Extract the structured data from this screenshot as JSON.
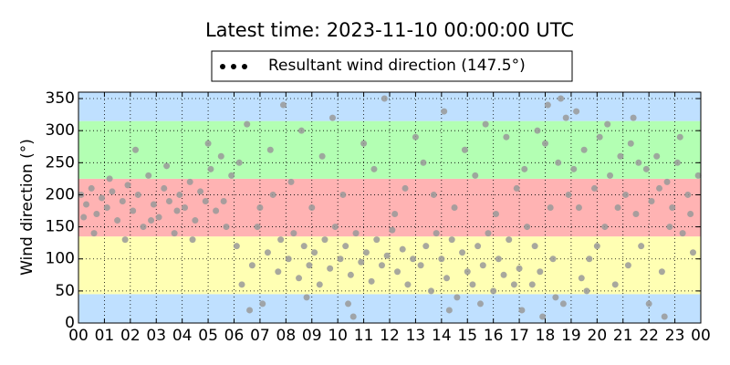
{
  "chart_data": {
    "type": "scatter",
    "title": "Latest time: 2023-11-10 00:00:00 UTC",
    "ylabel": "Wind direction (°)",
    "xlim": [
      0,
      24
    ],
    "ylim": [
      0,
      360
    ],
    "xticks": [
      {
        "value": 0,
        "label": "00"
      },
      {
        "value": 1,
        "label": "01"
      },
      {
        "value": 2,
        "label": "02"
      },
      {
        "value": 3,
        "label": "03"
      },
      {
        "value": 4,
        "label": "04"
      },
      {
        "value": 5,
        "label": "05"
      },
      {
        "value": 6,
        "label": "06"
      },
      {
        "value": 7,
        "label": "07"
      },
      {
        "value": 8,
        "label": "08"
      },
      {
        "value": 9,
        "label": "09"
      },
      {
        "value": 10,
        "label": "10"
      },
      {
        "value": 11,
        "label": "11"
      },
      {
        "value": 12,
        "label": "12"
      },
      {
        "value": 13,
        "label": "13"
      },
      {
        "value": 14,
        "label": "14"
      },
      {
        "value": 15,
        "label": "15"
      },
      {
        "value": 16,
        "label": "16"
      },
      {
        "value": 17,
        "label": "17"
      },
      {
        "value": 18,
        "label": "18"
      },
      {
        "value": 19,
        "label": "19"
      },
      {
        "value": 20,
        "label": "20"
      },
      {
        "value": 21,
        "label": "21"
      },
      {
        "value": 22,
        "label": "22"
      },
      {
        "value": 23,
        "label": "23"
      },
      {
        "value": 24,
        "label": "00"
      }
    ],
    "yticks": [
      0,
      50,
      100,
      150,
      200,
      250,
      300,
      350
    ],
    "grid": true,
    "legend": "top",
    "legend_marker_color": "#000000",
    "bands": [
      {
        "from": 0,
        "to": 45,
        "color": "#bfe0ff"
      },
      {
        "from": 45,
        "to": 135,
        "color": "#ffffb3"
      },
      {
        "from": 135,
        "to": 225,
        "color": "#ffb3b3"
      },
      {
        "from": 225,
        "to": 315,
        "color": "#b3ffb3"
      },
      {
        "from": 315,
        "to": 360,
        "color": "#bfe0ff"
      }
    ],
    "x": [
      0.1,
      0.3,
      0.5,
      0.7,
      0.9,
      1.1,
      1.3,
      1.5,
      1.7,
      1.9,
      2.1,
      2.3,
      2.5,
      2.7,
      2.9,
      3.1,
      3.3,
      3.5,
      3.7,
      3.9,
      4.1,
      4.3,
      4.5,
      4.7,
      4.9,
      5.1,
      5.3,
      5.5,
      5.7,
      5.9,
      0.2,
      0.6,
      1.2,
      1.8,
      2.2,
      2.8,
      3.4,
      3.8,
      4.4,
      5.0,
      5.6,
      6.1,
      6.3,
      6.5,
      6.7,
      6.9,
      7.1,
      7.3,
      7.5,
      7.7,
      7.9,
      6.2,
      6.6,
      7.0,
      7.4,
      7.8,
      8.1,
      8.3,
      8.5,
      8.7,
      8.9,
      9.1,
      9.3,
      9.5,
      9.7,
      9.9,
      10.1,
      10.3,
      10.5,
      10.7,
      10.9,
      11.1,
      11.3,
      11.5,
      11.7,
      11.9,
      12.1,
      12.3,
      12.5,
      12.7,
      12.9,
      8.2,
      8.6,
      9.0,
      9.4,
      9.8,
      10.2,
      10.6,
      11.0,
      11.4,
      11.8,
      12.2,
      12.6,
      13.0,
      8.8,
      10.4,
      13.2,
      13.4,
      13.6,
      13.8,
      14.0,
      14.2,
      14.4,
      14.6,
      14.8,
      15.0,
      15.2,
      15.4,
      15.6,
      15.8,
      16.0,
      16.2,
      16.4,
      16.6,
      16.8,
      17.0,
      13.3,
      13.7,
      14.1,
      14.5,
      14.9,
      15.3,
      15.7,
      16.1,
      16.5,
      16.9,
      14.3,
      15.5,
      17.1,
      17.3,
      17.5,
      17.7,
      17.9,
      18.1,
      18.3,
      18.5,
      18.7,
      18.9,
      17.2,
      17.6,
      18.0,
      18.4,
      18.8,
      17.8,
      18.2,
      18.6,
      19.1,
      19.3,
      19.5,
      19.7,
      19.9,
      20.1,
      20.3,
      20.5,
      20.7,
      20.9,
      21.1,
      21.3,
      21.5,
      21.7,
      21.9,
      22.1,
      22.3,
      22.5,
      22.7,
      22.9,
      23.1,
      23.3,
      23.5,
      23.7,
      23.9,
      19.2,
      19.6,
      20.0,
      20.4,
      20.8,
      21.2,
      21.6,
      22.0,
      22.4,
      22.8,
      23.2,
      23.6,
      19.4,
      21.4,
      22.6
    ],
    "series": [
      {
        "name": "Resultant wind direction (147.5°)",
        "color": "#999999",
        "values": [
          200,
          185,
          210,
          170,
          195,
          180,
          205,
          160,
          190,
          215,
          175,
          200,
          150,
          230,
          185,
          165,
          210,
          190,
          140,
          200,
          180,
          220,
          160,
          205,
          190,
          240,
          175,
          260,
          150,
          230,
          165,
          140,
          225,
          130,
          270,
          160,
          245,
          175,
          130,
          280,
          190,
          120,
          60,
          310,
          90,
          150,
          30,
          110,
          200,
          80,
          340,
          250,
          20,
          180,
          270,
          130,
          100,
          140,
          70,
          120,
          90,
          110,
          60,
          130,
          85,
          150,
          100,
          120,
          75,
          140,
          95,
          110,
          65,
          130,
          90,
          105,
          145,
          80,
          115,
          60,
          100,
          220,
          300,
          180,
          260,
          320,
          200,
          10,
          280,
          240,
          350,
          170,
          210,
          290,
          40,
          30,
          90,
          120,
          50,
          140,
          100,
          70,
          130,
          40,
          110,
          80,
          60,
          120,
          90,
          140,
          50,
          100,
          75,
          130,
          60,
          85,
          250,
          200,
          330,
          180,
          270,
          230,
          310,
          170,
          290,
          210,
          20,
          30,
          20,
          150,
          60,
          300,
          10,
          340,
          100,
          250,
          30,
          200,
          240,
          120,
          280,
          40,
          320,
          80,
          180,
          350,
          240,
          180,
          270,
          100,
          210,
          290,
          150,
          230,
          60,
          260,
          200,
          280,
          170,
          120,
          240,
          190,
          260,
          80,
          220,
          180,
          250,
          140,
          200,
          110,
          230,
          330,
          50,
          120,
          310,
          180,
          90,
          250,
          30,
          210,
          150,
          290,
          170,
          70,
          320,
          10
        ]
      }
    ]
  }
}
